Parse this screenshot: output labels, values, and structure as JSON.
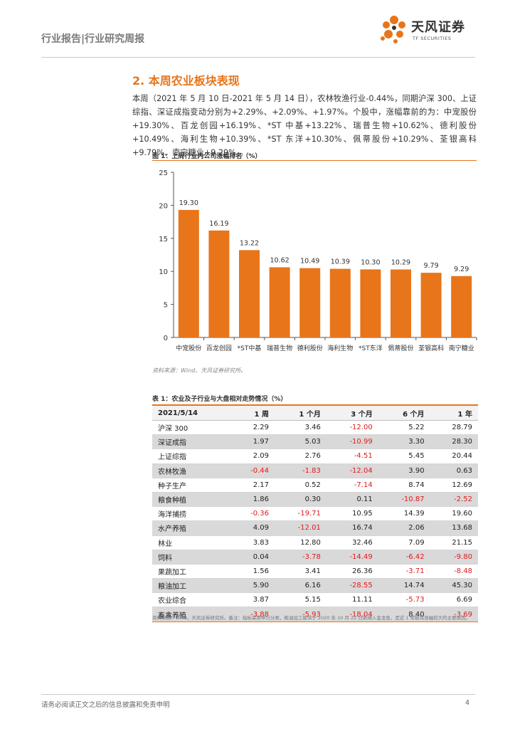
{
  "header": {
    "report_type": "行业报告|行业研究周报",
    "logo_cn": "天风证券",
    "logo_en": "TF SECURITIES"
  },
  "section": {
    "title": "2. 本周农业板块表现",
    "paragraph": "本周（2021 年 5 月 10 日-2021 年 5 月 14 日），农林牧渔行业-0.44%，同期沪深 300、上证综指、深证成指变动分别为+2.29%、+2.09%、+1.97%。个股中，涨幅靠前的为：中宠股份+19.30%、百龙创园+16.19%、*ST 中基+13.22%、瑞普生物+10.62%、德利股份+10.49%、海利生物+10.39%、*ST 东洋+10.30%、佩蒂股份+10.29%、荃银高科+9.79%、南宁糖业+9.29%。。"
  },
  "figure": {
    "caption": "图 1：上周行业内公司涨幅排名（%）",
    "source": "资料来源：Wind、天风证券研究所。"
  },
  "chart_data": {
    "type": "bar",
    "title": "上周行业内公司涨幅排名（%）",
    "categories": [
      "中宠股份",
      "百龙创园",
      "*ST中基",
      "瑞普生物",
      "德利股份",
      "海利生物",
      "*ST东洋",
      "佩蒂股份",
      "荃银高科",
      "南宁糖业"
    ],
    "values": [
      19.3,
      16.19,
      13.22,
      10.62,
      10.49,
      10.39,
      10.3,
      10.29,
      9.79,
      9.29
    ],
    "value_labels": [
      "19.30",
      "16.19",
      "13.22",
      "10.62",
      "10.49",
      "10.39",
      "10.30",
      "10.29",
      "9.79",
      "9.29"
    ],
    "yticks": [
      "0",
      "5",
      "10",
      "15",
      "20",
      "25"
    ],
    "ylim": [
      0,
      25
    ],
    "color": "#e8751a",
    "xlabel": "",
    "ylabel": ""
  },
  "table": {
    "caption": "表 1：农业及子行业与大盘相对走势情况（%）",
    "columns": [
      "2021/5/14",
      "1 周",
      "1 个月",
      "3 个月",
      "6 个月",
      "1 年"
    ],
    "rows": [
      {
        "name": "沪深 300",
        "values": [
          "2.29",
          "3.46",
          "-12.00",
          "5.22",
          "28.79"
        ]
      },
      {
        "name": "深证成指",
        "values": [
          "1.97",
          "5.03",
          "-10.99",
          "3.30",
          "28.30"
        ]
      },
      {
        "name": "上证综指",
        "values": [
          "2.09",
          "2.76",
          "-4.51",
          "5.45",
          "20.44"
        ]
      },
      {
        "name": "农林牧渔",
        "values": [
          "-0.44",
          "-1.83",
          "-12.04",
          "3.90",
          "0.63"
        ]
      },
      {
        "name": "种子生产",
        "values": [
          "2.17",
          "0.52",
          "-7.14",
          "8.74",
          "12.69"
        ]
      },
      {
        "name": "粮食种植",
        "values": [
          "1.86",
          "0.30",
          "0.11",
          "-10.87",
          "-2.52"
        ]
      },
      {
        "name": "海洋捕捞",
        "values": [
          "-0.36",
          "-19.71",
          "10.95",
          "14.39",
          "19.60"
        ]
      },
      {
        "name": "水产养殖",
        "values": [
          "4.09",
          "-12.01",
          "16.74",
          "2.06",
          "13.68"
        ]
      },
      {
        "name": "林业",
        "values": [
          "3.83",
          "12.80",
          "32.46",
          "7.09",
          "21.15"
        ]
      },
      {
        "name": "饲料",
        "values": [
          "0.04",
          "-3.78",
          "-14.49",
          "-6.42",
          "-9.80"
        ]
      },
      {
        "name": "果蔬加工",
        "values": [
          "1.56",
          "3.41",
          "26.36",
          "-3.71",
          "-8.48"
        ]
      },
      {
        "name": "粮油加工",
        "values": [
          "5.90",
          "6.16",
          "-28.55",
          "14.74",
          "45.30"
        ]
      },
      {
        "name": "农业综合",
        "values": [
          "3.87",
          "5.15",
          "11.11",
          "-5.73",
          "6.69"
        ]
      },
      {
        "name": "畜禽养殖",
        "values": [
          "-3.88",
          "-5.93",
          "-18.04",
          "8.40",
          "-3.69"
        ]
      }
    ],
    "source": "资料来源：Wind，天风证券研究所。备注：指标采用申万分类，粮油加工板块于 2020 年 10 月 22 日新纳入金龙鱼，是近 1 年板块涨幅较大的主要原因。"
  },
  "footer": {
    "disclaimer": "请务必阅读正文之后的信息披露和免责申明",
    "page": "4"
  }
}
